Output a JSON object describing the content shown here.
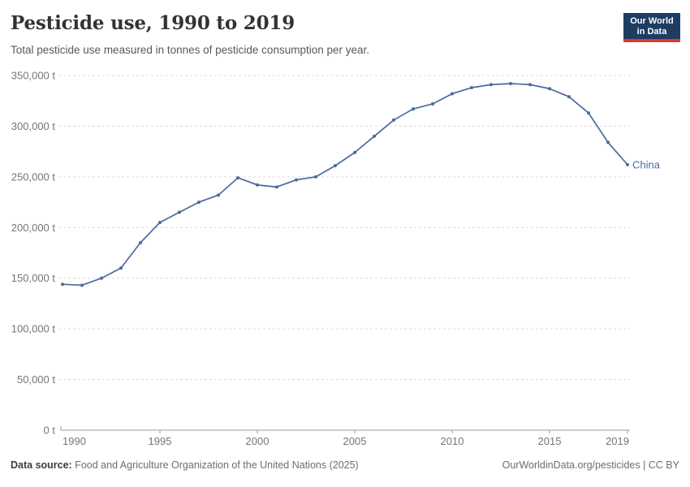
{
  "header": {
    "title": "Pesticide use, 1990 to 2019",
    "subtitle": "Total pesticide use measured in tonnes of pesticide consumption per year.",
    "logo": {
      "line1": "Our World",
      "line2": "in Data"
    }
  },
  "chart_data": {
    "type": "line",
    "title": "Pesticide use, 1990 to 2019",
    "xlabel": "",
    "ylabel": "",
    "unit": "t",
    "x": [
      1990,
      1991,
      1992,
      1993,
      1994,
      1995,
      1996,
      1997,
      1998,
      1999,
      2000,
      2001,
      2002,
      2003,
      2004,
      2005,
      2006,
      2007,
      2008,
      2009,
      2010,
      2011,
      2012,
      2013,
      2014,
      2015,
      2016,
      2017,
      2018,
      2019
    ],
    "series": [
      {
        "name": "China",
        "color": "#4c6a9c",
        "values": [
          144000,
          143000,
          150000,
          160000,
          185000,
          205000,
          215000,
          225000,
          232000,
          249000,
          242000,
          240000,
          247000,
          250000,
          261000,
          274000,
          290000,
          306000,
          317000,
          322000,
          332000,
          338000,
          341000,
          342000,
          341000,
          337000,
          329000,
          313000,
          284000,
          262000
        ]
      }
    ],
    "ylim": [
      0,
      350000
    ],
    "ytick_step": 50000,
    "yticks": [
      0,
      50000,
      100000,
      150000,
      200000,
      250000,
      300000,
      350000
    ],
    "xticks": [
      1990,
      1995,
      2000,
      2005,
      2010,
      2015,
      2019
    ],
    "grid": "horizontal-dashed",
    "legend": "end-of-line-label"
  },
  "footer": {
    "source_label": "Data source:",
    "source_text": " Food and Agriculture Organization of the United Nations (2025)",
    "credit": "OurWorldinData.org/pesticides | CC BY"
  },
  "colors": {
    "brand_navy": "#1d3d63",
    "brand_red": "#d93a32",
    "series_blue": "#4c6a9c",
    "gridline": "#dcdcdc",
    "axis": "#9e9e9e",
    "tick_text": "#757575"
  }
}
